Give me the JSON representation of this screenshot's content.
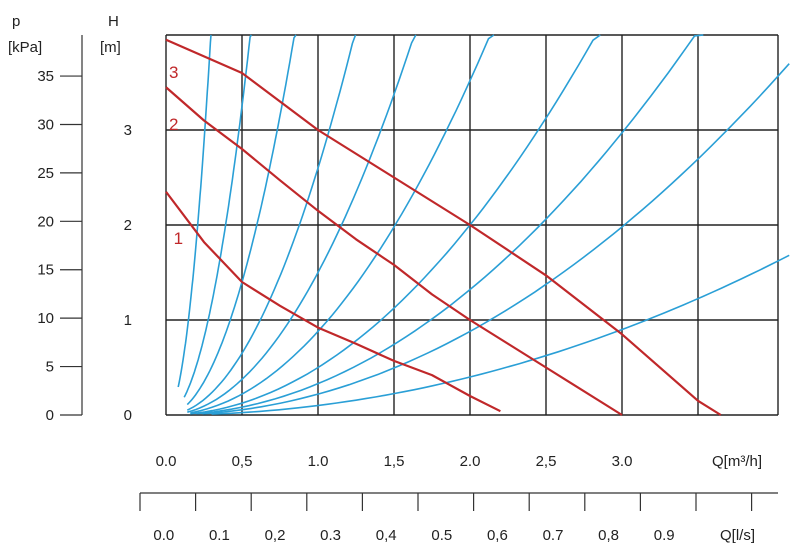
{
  "chart_data": {
    "type": "line",
    "title": "",
    "axes": {
      "p_label_top": "p",
      "p_label_unit": "[kPa]",
      "h_label_top": "H",
      "h_label_unit": "[m]",
      "q_m3h_label": "Q[m³/h]",
      "q_ls_label": "Q[l/s]"
    },
    "xlim_m3h": [
      0,
      4.1
    ],
    "ylim_m": [
      0,
      4
    ],
    "p_ticks": [
      "0",
      "5",
      "10",
      "15",
      "20",
      "25",
      "30",
      "35"
    ],
    "h_ticks": [
      "0",
      "1",
      "2",
      "3"
    ],
    "q_m3h_ticks": [
      "0.0",
      "0,5",
      "1.0",
      "1,5",
      "2.0",
      "2,5",
      "3.0"
    ],
    "q_ls_ticks": [
      "0.0",
      "0.1",
      "0,2",
      "0.3",
      "0,4",
      "0.5",
      "0,6",
      "0.7",
      "0,8",
      "0.9"
    ],
    "pump_curves": [
      {
        "name": "1",
        "points": [
          [
            0,
            2.35
          ],
          [
            0.25,
            1.82
          ],
          [
            0.5,
            1.4
          ],
          [
            0.75,
            1.15
          ],
          [
            1.0,
            0.92
          ],
          [
            1.25,
            0.75
          ],
          [
            1.5,
            0.57
          ],
          [
            1.75,
            0.42
          ],
          [
            2.0,
            0.2
          ],
          [
            2.2,
            0.04
          ]
        ]
      },
      {
        "name": "2",
        "points": [
          [
            0,
            3.45
          ],
          [
            0.25,
            3.1
          ],
          [
            0.5,
            2.8
          ],
          [
            0.75,
            2.47
          ],
          [
            1.0,
            2.15
          ],
          [
            1.25,
            1.85
          ],
          [
            1.5,
            1.58
          ],
          [
            1.75,
            1.27
          ],
          [
            2.0,
            1.0
          ],
          [
            2.5,
            0.5
          ],
          [
            3.0,
            0.0
          ]
        ]
      },
      {
        "name": "3",
        "points": [
          [
            0,
            3.95
          ],
          [
            0.5,
            3.6
          ],
          [
            1.0,
            3.0
          ],
          [
            1.5,
            2.5
          ],
          [
            2.0,
            2.0
          ],
          [
            2.5,
            1.47
          ],
          [
            3.0,
            0.85
          ],
          [
            3.5,
            0.15
          ],
          [
            3.65,
            0.0
          ]
        ]
      }
    ],
    "system_curves": [
      {
        "k": 46,
        "q0": 0.08,
        "qmax": 0.32
      },
      {
        "k": 13,
        "q0": 0.12,
        "qmax": 0.62
      },
      {
        "k": 5.6,
        "q0": 0.14,
        "qmax": 0.95
      },
      {
        "k": 2.6,
        "q0": 0.14,
        "qmax": 1.37
      },
      {
        "k": 1.5,
        "q0": 0.14,
        "qmax": 1.78
      },
      {
        "k": 0.88,
        "q0": 0.16,
        "qmax": 2.3
      },
      {
        "k": 0.5,
        "q0": 0.16,
        "qmax": 3.05
      },
      {
        "k": 0.33,
        "q0": 0.2,
        "qmax": 3.65
      },
      {
        "k": 0.22,
        "q0": 0.24,
        "qmax": 4.1
      },
      {
        "k": 0.1,
        "q0": 0.3,
        "qmax": 4.1
      }
    ],
    "colors": {
      "pump": "#c0282a",
      "system": "#2a9fd6",
      "grid": "#222222",
      "axis": "#333333",
      "text": "#222222"
    }
  }
}
